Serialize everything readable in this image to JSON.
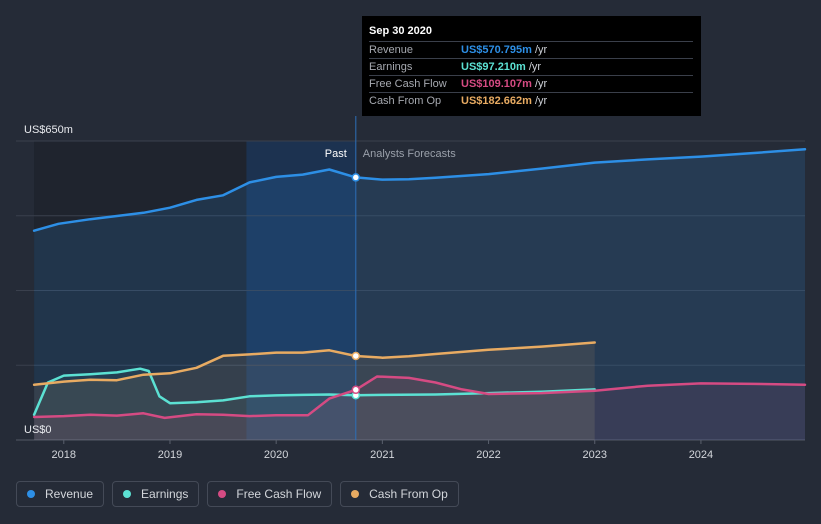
{
  "chart_data": {
    "type": "line",
    "title": "",
    "y_axis": {
      "min_label": "US$0",
      "max_label": "US$650m",
      "ylim": [
        0,
        650
      ]
    },
    "x_axis": {
      "ticks": [
        "2018",
        "2019",
        "2020",
        "2021",
        "2022",
        "2023",
        "2024"
      ]
    },
    "x_range": [
      2017.55,
      2024.98
    ],
    "past_label": "Past",
    "forecast_label": "Analysts Forecasts",
    "divider_x": 2020.75,
    "series": [
      {
        "name": "Revenue",
        "color": "#2d8fe6",
        "points": [
          [
            2017.72,
            455
          ],
          [
            2017.95,
            470
          ],
          [
            2018.25,
            480
          ],
          [
            2018.5,
            487
          ],
          [
            2018.75,
            494
          ],
          [
            2019.0,
            505
          ],
          [
            2019.25,
            522
          ],
          [
            2019.5,
            532
          ],
          [
            2019.75,
            560
          ],
          [
            2020.0,
            572
          ],
          [
            2020.25,
            577
          ],
          [
            2020.5,
            588
          ],
          [
            2020.75,
            570.795
          ],
          [
            2021.0,
            566
          ],
          [
            2021.25,
            567
          ],
          [
            2021.5,
            570
          ],
          [
            2022.0,
            578
          ],
          [
            2022.5,
            590
          ],
          [
            2023.0,
            603
          ],
          [
            2023.5,
            610
          ],
          [
            2024.0,
            616
          ],
          [
            2024.5,
            624
          ],
          [
            2024.98,
            632
          ]
        ]
      },
      {
        "name": "Earnings",
        "color": "#5ce1d3",
        "points": [
          [
            2017.72,
            55
          ],
          [
            2017.85,
            125
          ],
          [
            2018.0,
            140
          ],
          [
            2018.25,
            143
          ],
          [
            2018.5,
            147
          ],
          [
            2018.72,
            155
          ],
          [
            2018.8,
            150
          ],
          [
            2018.9,
            95
          ],
          [
            2019.0,
            80
          ],
          [
            2019.25,
            82
          ],
          [
            2019.5,
            86
          ],
          [
            2019.75,
            95
          ],
          [
            2020.0,
            97
          ],
          [
            2020.25,
            98
          ],
          [
            2020.5,
            99
          ],
          [
            2020.75,
            97.21
          ],
          [
            2021.0,
            98
          ],
          [
            2021.5,
            99
          ],
          [
            2022.0,
            102
          ],
          [
            2022.5,
            105
          ],
          [
            2023.0,
            110
          ]
        ]
      },
      {
        "name": "Free Cash Flow",
        "color": "#d54b83",
        "points": [
          [
            2017.72,
            50
          ],
          [
            2018.0,
            52
          ],
          [
            2018.25,
            55
          ],
          [
            2018.5,
            53
          ],
          [
            2018.75,
            58
          ],
          [
            2018.95,
            48
          ],
          [
            2019.25,
            56
          ],
          [
            2019.5,
            55
          ],
          [
            2019.75,
            52
          ],
          [
            2020.0,
            54
          ],
          [
            2020.3,
            54
          ],
          [
            2020.5,
            90
          ],
          [
            2020.75,
            109.107
          ],
          [
            2020.95,
            138
          ],
          [
            2021.25,
            135
          ],
          [
            2021.5,
            125
          ],
          [
            2021.75,
            110
          ],
          [
            2022.0,
            100
          ],
          [
            2022.5,
            102
          ],
          [
            2023.0,
            107
          ],
          [
            2023.5,
            118
          ],
          [
            2024.0,
            123
          ],
          [
            2024.5,
            122
          ],
          [
            2024.98,
            120
          ]
        ]
      },
      {
        "name": "Cash From Op",
        "color": "#e8ab62",
        "points": [
          [
            2017.72,
            120
          ],
          [
            2018.0,
            127
          ],
          [
            2018.25,
            131
          ],
          [
            2018.5,
            130
          ],
          [
            2018.75,
            142
          ],
          [
            2019.0,
            145
          ],
          [
            2019.25,
            157
          ],
          [
            2019.5,
            183
          ],
          [
            2019.75,
            186
          ],
          [
            2020.0,
            190
          ],
          [
            2020.25,
            190
          ],
          [
            2020.5,
            195
          ],
          [
            2020.75,
            182.662
          ],
          [
            2021.0,
            179
          ],
          [
            2021.25,
            182
          ],
          [
            2021.5,
            187
          ],
          [
            2022.0,
            196
          ],
          [
            2022.5,
            203
          ],
          [
            2023.0,
            212
          ]
        ]
      }
    ],
    "tooltip": {
      "date": "Sep 30 2020",
      "rows": [
        {
          "label": "Revenue",
          "value": "US$570.795m",
          "unit": "/yr",
          "color": "#2d8fe6"
        },
        {
          "label": "Earnings",
          "value": "US$97.210m",
          "unit": "/yr",
          "color": "#5ce1d3"
        },
        {
          "label": "Free Cash Flow",
          "value": "US$109.107m",
          "unit": "/yr",
          "color": "#d54b83"
        },
        {
          "label": "Cash From Op",
          "value": "US$182.662m",
          "unit": "/yr",
          "color": "#e8ab62"
        }
      ]
    }
  },
  "legend": [
    {
      "label": "Revenue",
      "color": "#2d8fe6"
    },
    {
      "label": "Earnings",
      "color": "#5ce1d3"
    },
    {
      "label": "Free Cash Flow",
      "color": "#d54b83"
    },
    {
      "label": "Cash From Op",
      "color": "#e8ab62"
    }
  ]
}
